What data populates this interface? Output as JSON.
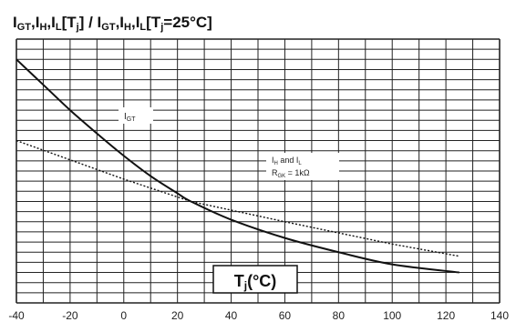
{
  "chart_data": {
    "type": "line",
    "title": "IGT,IH,IL[Tj] / IGT,IH,IL[Tj=25°C]",
    "xlabel": "Tj(°C)",
    "ylabel": "",
    "xlim": [
      -40,
      140
    ],
    "ylim": [
      0,
      2.6
    ],
    "x_ticks": [
      "-40",
      "-20",
      "0",
      "20",
      "40",
      "60",
      "80",
      "100",
      "120",
      "140"
    ],
    "grid": true,
    "series": [
      {
        "name": "IGT",
        "style": "solid",
        "x": [
          -40,
          -30,
          -20,
          -10,
          0,
          10,
          20,
          25,
          40,
          60,
          80,
          100,
          125
        ],
        "y": [
          2.4,
          2.15,
          1.9,
          1.67,
          1.45,
          1.25,
          1.08,
          1.0,
          0.82,
          0.64,
          0.5,
          0.38,
          0.3
        ]
      },
      {
        "name": "IH and IL",
        "style": "dotted",
        "x": [
          -40,
          0,
          25,
          60,
          100,
          125
        ],
        "y": [
          1.6,
          1.22,
          1.0,
          0.8,
          0.58,
          0.46
        ]
      }
    ],
    "annotations": {
      "igt_label": "IGT",
      "ih_label": "IH and IL",
      "rgk_label": "RGK = 1kΩ"
    }
  },
  "colors": {
    "grid": "#222222",
    "curve": "#111111",
    "background": "#ffffff"
  }
}
